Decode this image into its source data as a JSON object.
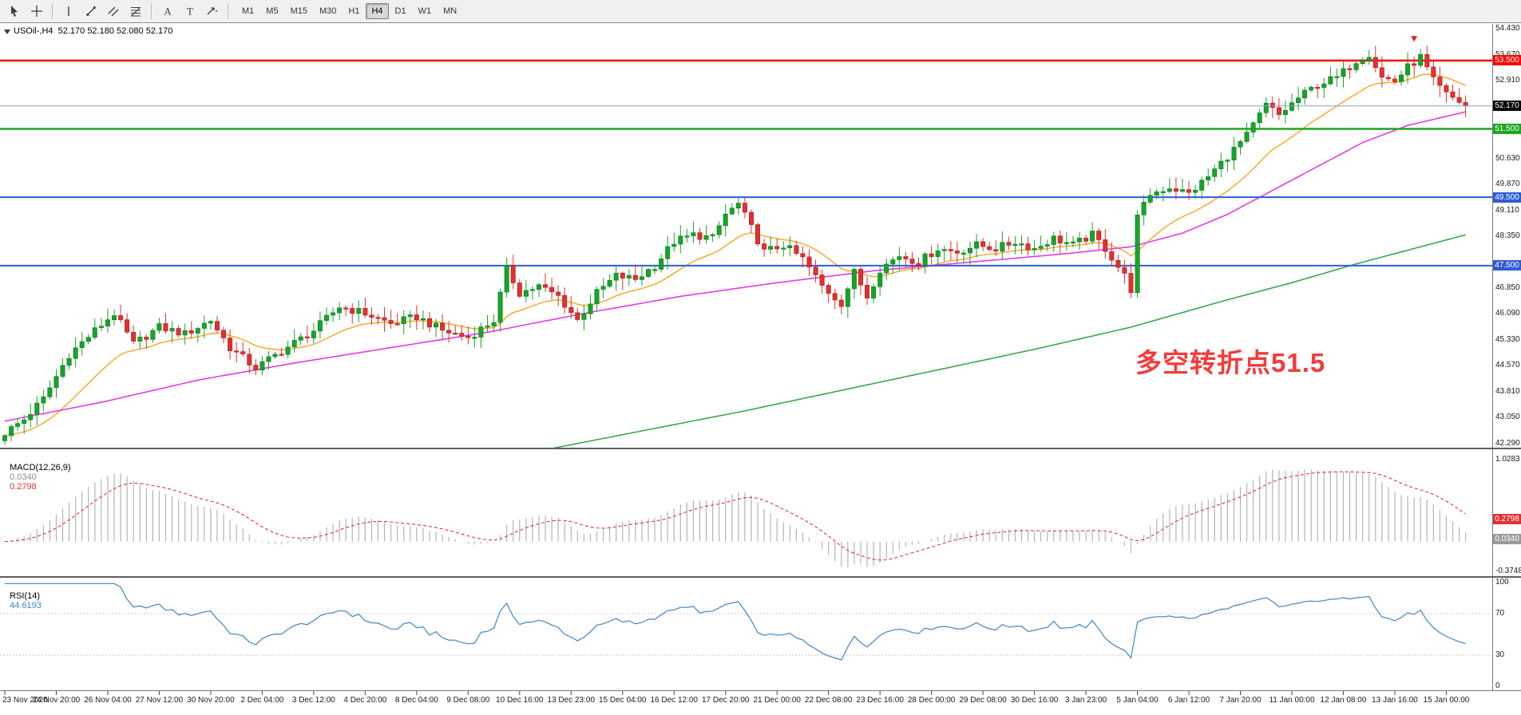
{
  "toolbar": {
    "tools": [
      "cursor",
      "crosshair",
      "vertical-line",
      "trendline",
      "equidistant-channel",
      "fibonacci",
      "text",
      "label",
      "arrow-shapes"
    ],
    "timeframes": [
      "M1",
      "M5",
      "M15",
      "M30",
      "H1",
      "H4",
      "D1",
      "W1",
      "MN"
    ],
    "active_timeframe": "H4"
  },
  "chart_data": {
    "type": "candlestick",
    "symbol": "USOil",
    "timeframe": "H4",
    "symbol_title": "USOil-,H4  52.170 52.180 52.080 52.170",
    "ohlc_display": {
      "open": "52.170",
      "high": "52.180",
      "low": "52.080",
      "close": "52.170"
    },
    "annotation": {
      "text": "多空转折点51.5",
      "color": "#f43b3b"
    },
    "ylim": [
      42.29,
      54.43
    ],
    "bar_count": 228,
    "colors": {
      "up": "#18a32b",
      "up_stroke": "#0d7a1c",
      "down": "#e23030",
      "down_stroke": "#a81f1f",
      "bid_line": "#85a3c2"
    },
    "price_axis_ticks": [
      "54.430",
      "53.670",
      "52.910",
      "50.630",
      "49.870",
      "49.110",
      "48.350",
      "46.850",
      "46.090",
      "45.330",
      "44.570",
      "43.810",
      "43.050",
      "42.290"
    ],
    "current_price": {
      "value": 52.17,
      "label": "52.170",
      "badge_bg": "#000000"
    },
    "horizontal_lines": [
      {
        "price": 53.5,
        "label": "53.500",
        "color": "#ff0000",
        "width": 2.5
      },
      {
        "price": 51.5,
        "label": "51.500",
        "color": "#1fa51f",
        "width": 2.5
      },
      {
        "price": 49.5,
        "label": "49.500",
        "color": "#2e5cd5",
        "width": 2
      },
      {
        "price": 47.5,
        "label": "47.500",
        "color": "#2e5cd5",
        "width": 2
      }
    ],
    "price_waypoints": [
      [
        0,
        42.6
      ],
      [
        3,
        43.0
      ],
      [
        6,
        43.6
      ],
      [
        10,
        44.9
      ],
      [
        14,
        45.6
      ],
      [
        17,
        46.1
      ],
      [
        20,
        45.2
      ],
      [
        24,
        45.7
      ],
      [
        28,
        45.5
      ],
      [
        32,
        45.9
      ],
      [
        35,
        45.1
      ],
      [
        39,
        44.5
      ],
      [
        43,
        45.0
      ],
      [
        48,
        45.6
      ],
      [
        52,
        46.3
      ],
      [
        56,
        46.1
      ],
      [
        60,
        45.8
      ],
      [
        64,
        46.0
      ],
      [
        68,
        45.6
      ],
      [
        72,
        45.4
      ],
      [
        76,
        45.9
      ],
      [
        78,
        47.4
      ],
      [
        80,
        46.7
      ],
      [
        83,
        46.9
      ],
      [
        86,
        46.6
      ],
      [
        89,
        45.9
      ],
      [
        92,
        46.7
      ],
      [
        95,
        47.2
      ],
      [
        98,
        47.1
      ],
      [
        101,
        47.5
      ],
      [
        104,
        48.2
      ],
      [
        107,
        48.4
      ],
      [
        110,
        48.3
      ],
      [
        112,
        49.0
      ],
      [
        114,
        49.3
      ],
      [
        116,
        48.6
      ],
      [
        118,
        47.9
      ],
      [
        121,
        48.1
      ],
      [
        124,
        47.7
      ],
      [
        127,
        46.9
      ],
      [
        130,
        46.4
      ],
      [
        132,
        47.3
      ],
      [
        134,
        46.6
      ],
      [
        136,
        47.4
      ],
      [
        139,
        47.8
      ],
      [
        142,
        47.6
      ],
      [
        145,
        48.0
      ],
      [
        148,
        47.9
      ],
      [
        151,
        48.1
      ],
      [
        154,
        48.0
      ],
      [
        157,
        48.2
      ],
      [
        160,
        48.0
      ],
      [
        163,
        48.3
      ],
      [
        166,
        48.1
      ],
      [
        169,
        48.4
      ],
      [
        171,
        48.0
      ],
      [
        174,
        47.2
      ],
      [
        175,
        46.8
      ],
      [
        176,
        48.9
      ],
      [
        178,
        49.6
      ],
      [
        181,
        49.8
      ],
      [
        184,
        49.6
      ],
      [
        187,
        50.1
      ],
      [
        190,
        50.7
      ],
      [
        193,
        51.3
      ],
      [
        196,
        52.2
      ],
      [
        198,
        51.9
      ],
      [
        201,
        52.4
      ],
      [
        204,
        52.8
      ],
      [
        207,
        53.0
      ],
      [
        210,
        53.5
      ],
      [
        212,
        53.7
      ],
      [
        214,
        53.0
      ],
      [
        216,
        52.9
      ],
      [
        218,
        53.3
      ],
      [
        220,
        53.6
      ],
      [
        222,
        52.9
      ],
      [
        224,
        52.5
      ],
      [
        226,
        52.3
      ],
      [
        227,
        52.17
      ]
    ],
    "moving_averages": [
      {
        "name": "ma-fast",
        "color": "#f5a623",
        "type": "ema",
        "period": 16
      },
      {
        "name": "ma-mid",
        "color": "#e23de2",
        "type": "path",
        "waypoints": [
          [
            0,
            42.95
          ],
          [
            15,
            43.5
          ],
          [
            30,
            44.15
          ],
          [
            45,
            44.65
          ],
          [
            60,
            45.1
          ],
          [
            75,
            45.55
          ],
          [
            90,
            46.1
          ],
          [
            105,
            46.6
          ],
          [
            120,
            47.0
          ],
          [
            135,
            47.35
          ],
          [
            150,
            47.6
          ],
          [
            165,
            47.85
          ],
          [
            175,
            48.05
          ],
          [
            183,
            48.45
          ],
          [
            190,
            49.0
          ],
          [
            197,
            49.7
          ],
          [
            204,
            50.4
          ],
          [
            211,
            51.1
          ],
          [
            218,
            51.6
          ],
          [
            227,
            52.0
          ]
        ]
      },
      {
        "name": "ma-slow",
        "color": "#3aa64c",
        "type": "path",
        "start": 85,
        "waypoints": [
          [
            85,
            42.15
          ],
          [
            100,
            42.7
          ],
          [
            115,
            43.25
          ],
          [
            130,
            43.85
          ],
          [
            145,
            44.45
          ],
          [
            160,
            45.05
          ],
          [
            175,
            45.7
          ],
          [
            190,
            46.5
          ],
          [
            200,
            47.0
          ],
          [
            210,
            47.55
          ],
          [
            218,
            47.95
          ],
          [
            227,
            48.4
          ]
        ]
      }
    ],
    "sell_marker": {
      "bar": 219,
      "price": 54.05,
      "color": "#e02020"
    },
    "indicators": {
      "macd": {
        "name": "MACD(12,26,9)",
        "main_value": "0.0340",
        "signal_value": "0.2798",
        "axis_top": "1.0283",
        "axis_bottom": "-0.3748",
        "fast": 12,
        "slow": 26,
        "signal": 9,
        "hist_color": "#b4b4b4",
        "signal_color": "#e03232",
        "main_value_color": "#8d8d8d"
      },
      "rsi": {
        "name": "RSI(14)",
        "value": "44.6193",
        "period": 14,
        "axis": [
          "100",
          "70",
          "30",
          "0"
        ],
        "levels": [
          70,
          30
        ],
        "line_color": "#3d85c8",
        "level_color": "#c8c8c8"
      }
    },
    "x_labels": [
      "23 Nov 2020",
      "24 Nov 20:00",
      "26 Nov 04:00",
      "27 Nov 12:00",
      "30 Nov 20:00",
      "2 Dec 04:00",
      "3 Dec 12:00",
      "4 Dec 20:00",
      "8 Dec 04:00",
      "9 Dec 08:00",
      "10 Dec 16:00",
      "13 Dec 23:00",
      "15 Dec 04:00",
      "16 Dec 12:00",
      "17 Dec 20:00",
      "21 Dec 00:00",
      "22 Dec 08:00",
      "23 Dec 16:00",
      "28 Dec 00:00",
      "29 Dec 08:00",
      "30 Dec 16:00",
      "3 Jan 23:00",
      "5 Jan 04:00",
      "6 Jan 12:00",
      "7 Jan 20:00",
      "11 Jan 00:00",
      "12 Jan 08:00",
      "13 Jan 16:00",
      "15 Jan 00:00"
    ]
  }
}
